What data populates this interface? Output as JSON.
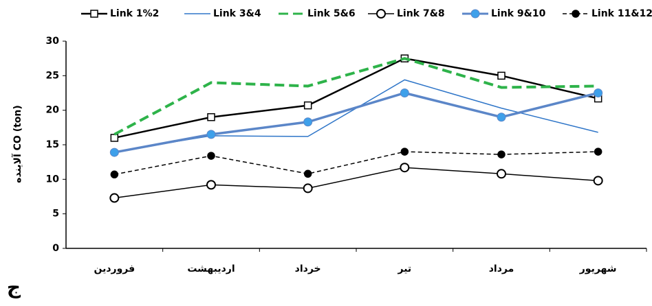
{
  "chart_data": {
    "type": "line",
    "y_label": "آلاینده CO (ton)",
    "corner_label": "ج",
    "categories": [
      "فروردین",
      "اردیبهشت",
      "خرداد",
      "تیر",
      "مرداد",
      "شهریور"
    ],
    "ylim": [
      0,
      30
    ],
    "yticks": [
      0,
      5,
      10,
      15,
      20,
      25,
      30
    ],
    "grid": false,
    "legend": "top",
    "series": [
      {
        "name": "Link 1%2",
        "color": "#000000",
        "dash": "solid",
        "width": 2.5,
        "marker": "square",
        "marker_fill": "#ffffff",
        "values": [
          16,
          19,
          20.7,
          27.5,
          25,
          21.7
        ]
      },
      {
        "name": "Link 3&4",
        "color": "#2e75c8",
        "dash": "solid",
        "width": 1.5,
        "marker": "none",
        "marker_fill": "#2e75c8",
        "values": [
          14,
          16.3,
          16.2,
          24.4,
          20.3,
          16.8
        ]
      },
      {
        "name": "Link 5&6",
        "color": "#2eb34a",
        "dash": "dashed",
        "width": 4,
        "marker": "none",
        "marker_fill": "#2eb34a",
        "values": [
          16.5,
          24,
          23.5,
          27.5,
          23.3,
          23.5
        ]
      },
      {
        "name": "Link 7&8",
        "color": "#000000",
        "dash": "solid",
        "width": 1.5,
        "marker": "circle",
        "marker_fill": "#ffffff",
        "values": [
          7.3,
          9.2,
          8.7,
          11.7,
          10.8,
          9.8
        ]
      },
      {
        "name": "Link 9&10",
        "color": "#5b86c8",
        "dash": "solid",
        "width": 3.5,
        "marker": "circle",
        "marker_fill": "#3ea0ea",
        "values": [
          13.9,
          16.5,
          18.3,
          22.5,
          19,
          22.5
        ]
      },
      {
        "name": "Link 11&12",
        "color": "#000000",
        "dash": "dashed",
        "width": 1.5,
        "marker": "dot",
        "marker_fill": "#000000",
        "values": [
          10.7,
          13.4,
          10.8,
          14,
          13.6,
          14
        ]
      }
    ]
  }
}
